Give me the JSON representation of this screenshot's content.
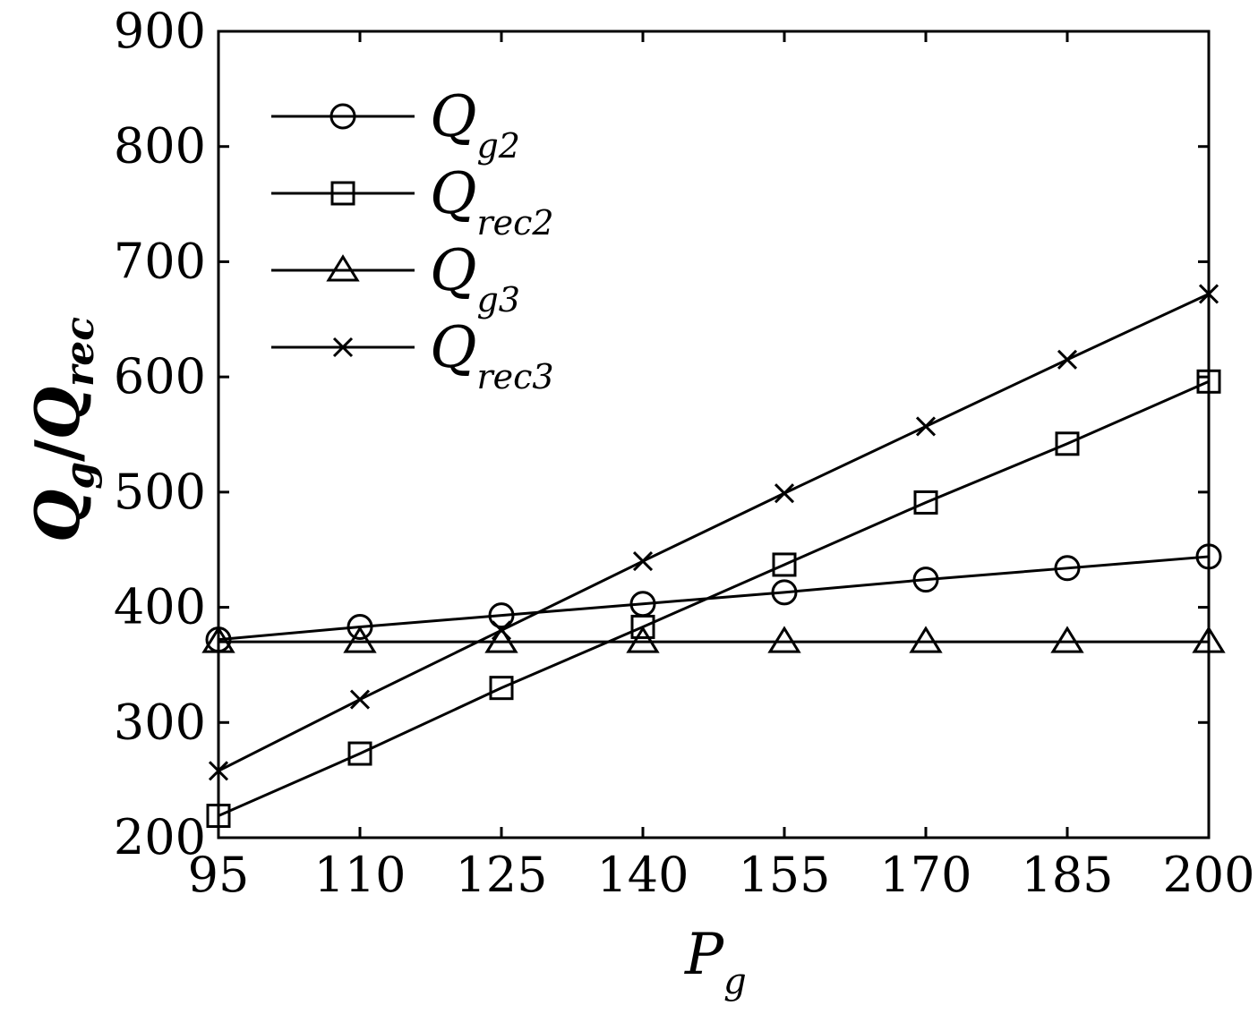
{
  "chart_data": {
    "type": "line",
    "x": [
      95,
      110,
      125,
      140,
      155,
      170,
      185,
      200
    ],
    "xlim": [
      95,
      200
    ],
    "ylim": [
      200,
      900
    ],
    "xticks": [
      "95",
      "110",
      "125",
      "140",
      "155",
      "170",
      "185",
      "200"
    ],
    "yticks": [
      "200",
      "300",
      "400",
      "500",
      "600",
      "700",
      "800",
      "900"
    ],
    "xlabel": {
      "main": "P",
      "sub": "g"
    },
    "ylabel": {
      "q1": "Q",
      "sub1": "g",
      "sep": "/",
      "q2": "Q",
      "sub2": "rec"
    },
    "grid": false,
    "legend_position": "top-left",
    "series": [
      {
        "name": "Q_g2",
        "label_main": "Q",
        "label_sub": "g2",
        "marker": "circle",
        "values": [
          372,
          383,
          393,
          403,
          413,
          424,
          434,
          444
        ]
      },
      {
        "name": "Q_rec2",
        "label_main": "Q",
        "label_sub": "rec2",
        "marker": "square",
        "values": [
          219,
          273,
          330,
          383,
          437,
          491,
          542,
          596
        ]
      },
      {
        "name": "Q_g3",
        "label_main": "Q",
        "label_sub": "g3",
        "marker": "triangle",
        "values": [
          370,
          370,
          370,
          370,
          370,
          370,
          370,
          370
        ]
      },
      {
        "name": "Q_rec3",
        "label_main": "Q",
        "label_sub": "rec3",
        "marker": "x",
        "values": [
          258,
          320,
          380,
          440,
          499,
          557,
          615,
          672
        ]
      }
    ]
  }
}
